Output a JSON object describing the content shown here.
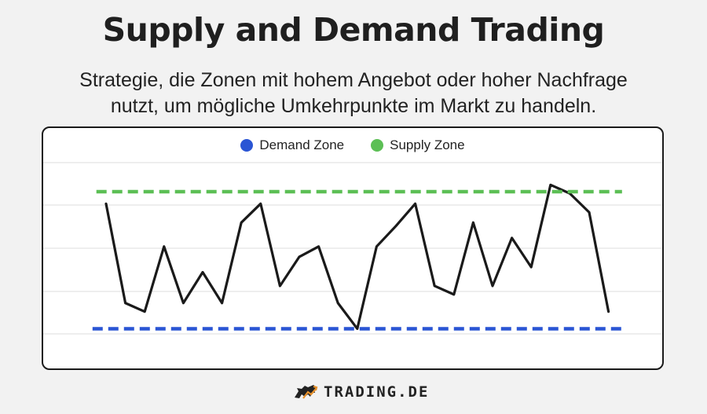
{
  "title": "Supply and Demand Trading",
  "subtitle_line1": "Strategie, die Zonen mit hohem Angebot oder hoher Nachfrage",
  "subtitle_line2": "nutzt, um mögliche Umkehrpunkte im Markt zu handeln.",
  "brand": {
    "text": "TRADING.DE",
    "icon": "bull-icon",
    "accent_color": "#e8922c"
  },
  "colors": {
    "demand": "#2a55d4",
    "supply": "#5cbf55",
    "price_line": "#1a1a1a",
    "grid": "#e3e3e3"
  },
  "chart_data": {
    "type": "line",
    "grid": true,
    "ylim": [
      0,
      10
    ],
    "legend_position": "top-center",
    "legend": [
      "Demand Zone",
      "Supply Zone"
    ],
    "series": [
      {
        "role": "price",
        "x": [
          0,
          1,
          2,
          3,
          4,
          5,
          6,
          7,
          8,
          9,
          10,
          11,
          12,
          13,
          14,
          15,
          16,
          17,
          18,
          19,
          20,
          21,
          22,
          23,
          24,
          25,
          26
        ],
        "values": [
          7.6,
          1.8,
          1.3,
          5.1,
          1.8,
          3.6,
          1.8,
          6.5,
          7.6,
          2.8,
          4.5,
          5.1,
          1.8,
          0.3,
          5.1,
          6.3,
          7.6,
          2.8,
          2.3,
          6.5,
          2.8,
          5.6,
          3.9,
          8.7,
          8.2,
          7.1,
          1.3
        ]
      },
      {
        "name": "Demand Zone",
        "role": "demand",
        "x": [
          -0.7,
          26.7
        ],
        "values": [
          0.3,
          0.3
        ]
      },
      {
        "name": "Supply Zone",
        "role": "supply",
        "x": [
          -0.5,
          26.7
        ],
        "values": [
          8.3,
          8.3
        ]
      }
    ]
  }
}
